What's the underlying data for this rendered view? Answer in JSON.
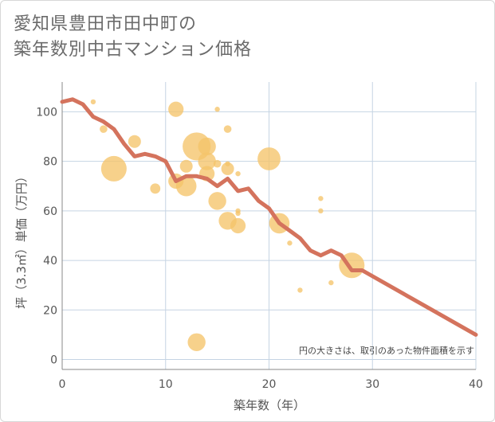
{
  "title": {
    "line1": "愛知県豊田市田中町の",
    "line2": "築年数別中古マンション価格"
  },
  "note": "円の大きさは、取引のあった物件面積を示す",
  "colors": {
    "bubble": "#f5c46a",
    "line": "#d4735d",
    "grid": "#c5d4e3",
    "axis": "#888888"
  },
  "chart_data": {
    "type": "scatter",
    "xlabel": "築年数（年）",
    "ylabel": "坪（3.3㎡）単価（万円）",
    "xlim": [
      0,
      40
    ],
    "ylim": [
      -4,
      112
    ],
    "xticks": [
      0,
      10,
      20,
      30,
      40
    ],
    "yticks": [
      0,
      20,
      40,
      60,
      80,
      100
    ],
    "grid": true,
    "bubbles": [
      {
        "x": 3,
        "y": 104,
        "r": 2
      },
      {
        "x": 4,
        "y": 93,
        "r": 3
      },
      {
        "x": 5,
        "y": 77,
        "r": 10
      },
      {
        "x": 7,
        "y": 88,
        "r": 5
      },
      {
        "x": 9,
        "y": 69,
        "r": 4
      },
      {
        "x": 11,
        "y": 101,
        "r": 6
      },
      {
        "x": 11,
        "y": 72,
        "r": 6
      },
      {
        "x": 12,
        "y": 78,
        "r": 5
      },
      {
        "x": 12,
        "y": 70,
        "r": 8
      },
      {
        "x": 13,
        "y": 86,
        "r": 11
      },
      {
        "x": 13,
        "y": 7,
        "r": 7
      },
      {
        "x": 14,
        "y": 86,
        "r": 7
      },
      {
        "x": 14,
        "y": 80,
        "r": 7
      },
      {
        "x": 14,
        "y": 75,
        "r": 6
      },
      {
        "x": 15,
        "y": 101,
        "r": 2
      },
      {
        "x": 15,
        "y": 79,
        "r": 3
      },
      {
        "x": 15,
        "y": 64,
        "r": 7
      },
      {
        "x": 16,
        "y": 93,
        "r": 3
      },
      {
        "x": 16,
        "y": 79,
        "r": 2
      },
      {
        "x": 16,
        "y": 77,
        "r": 5
      },
      {
        "x": 16,
        "y": 56,
        "r": 7
      },
      {
        "x": 17,
        "y": 75,
        "r": 2
      },
      {
        "x": 17,
        "y": 60,
        "r": 2
      },
      {
        "x": 17,
        "y": 59,
        "r": 2
      },
      {
        "x": 17,
        "y": 54,
        "r": 6
      },
      {
        "x": 20,
        "y": 81,
        "r": 9
      },
      {
        "x": 21,
        "y": 55,
        "r": 8
      },
      {
        "x": 22,
        "y": 47,
        "r": 2
      },
      {
        "x": 23,
        "y": 28,
        "r": 2
      },
      {
        "x": 25,
        "y": 65,
        "r": 2
      },
      {
        "x": 25,
        "y": 60,
        "r": 2
      },
      {
        "x": 26,
        "y": 31,
        "r": 2
      },
      {
        "x": 28,
        "y": 38,
        "r": 10
      }
    ],
    "line": {
      "x": [
        0,
        1,
        2,
        3,
        4,
        5,
        6,
        7,
        8,
        9,
        10,
        11,
        12,
        13,
        14,
        15,
        16,
        17,
        18,
        19,
        20,
        21,
        22,
        23,
        24,
        25,
        26,
        27,
        28,
        29,
        40
      ],
      "y": [
        104,
        105,
        103,
        98,
        96,
        93,
        87,
        82,
        83,
        82,
        80,
        72,
        74,
        74,
        73,
        70,
        73,
        68,
        69,
        64,
        61,
        55,
        52,
        49,
        44,
        42,
        44,
        42,
        36,
        36,
        10
      ]
    }
  }
}
